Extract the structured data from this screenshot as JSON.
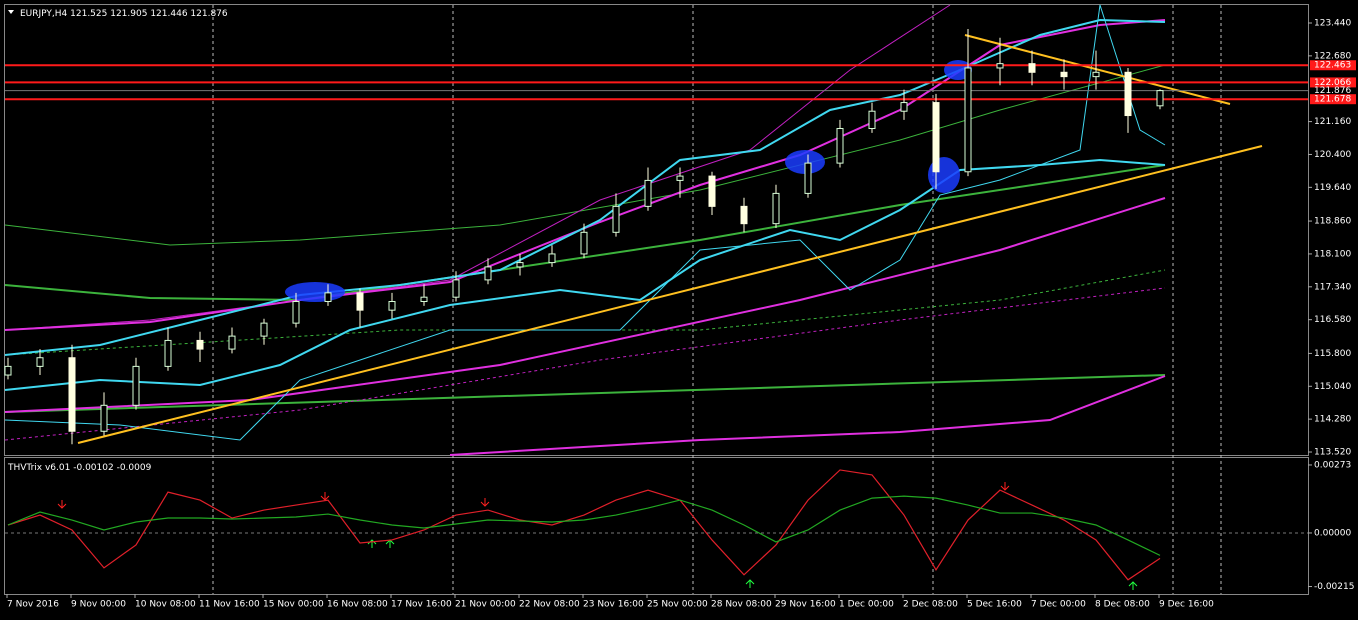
{
  "chart_data": {
    "type": "candlestick",
    "symbol": "EURJPY,H4",
    "open": [
      115.3,
      115.5,
      115.7,
      114.0,
      114.6,
      115.5,
      116.1,
      115.9,
      116.2,
      116.5,
      117.0,
      117.2,
      116.8,
      117.0,
      117.1,
      117.5,
      117.8,
      117.9,
      118.1,
      118.6,
      119.2,
      119.8,
      119.9,
      119.2,
      118.8,
      119.5,
      120.2,
      121.0,
      121.4,
      121.6,
      120.0,
      122.4,
      122.5,
      122.3,
      122.2,
      122.3,
      121.525
    ],
    "high": [
      115.7,
      115.9,
      116.0,
      114.9,
      115.7,
      116.4,
      116.3,
      116.4,
      116.6,
      117.2,
      117.4,
      117.3,
      117.2,
      117.4,
      117.7,
      118.0,
      118.1,
      118.3,
      118.8,
      119.5,
      120.1,
      120.1,
      120.0,
      119.4,
      119.7,
      120.4,
      121.2,
      121.6,
      121.9,
      121.8,
      123.3,
      123.1,
      122.8,
      122.6,
      122.8,
      122.4,
      121.905
    ],
    "low": [
      115.2,
      115.3,
      113.7,
      113.9,
      114.5,
      115.4,
      115.6,
      115.8,
      116.0,
      116.4,
      116.9,
      116.4,
      116.6,
      116.9,
      117.0,
      117.4,
      117.6,
      117.8,
      118.0,
      118.5,
      119.1,
      119.4,
      119.0,
      118.6,
      118.7,
      119.4,
      120.1,
      120.9,
      121.2,
      119.6,
      119.9,
      122.0,
      122.0,
      121.9,
      121.9,
      120.9,
      121.446
    ],
    "close": [
      115.5,
      115.7,
      114.0,
      114.6,
      115.5,
      116.1,
      115.9,
      116.2,
      116.5,
      117.0,
      117.2,
      116.8,
      117.0,
      117.1,
      117.5,
      117.8,
      117.9,
      118.1,
      118.6,
      119.2,
      119.8,
      119.9,
      119.2,
      118.8,
      119.5,
      120.2,
      121.0,
      121.4,
      121.6,
      120.0,
      122.4,
      122.5,
      122.3,
      122.2,
      122.3,
      121.3,
      121.876
    ],
    "ylim": [
      113.451,
      123.856
    ],
    "yticks": [
      {
        "value": 123.44,
        "label": "123.440"
      },
      {
        "value": 122.68,
        "label": "122.680"
      },
      {
        "value": 121.16,
        "label": "121.160"
      },
      {
        "value": 120.4,
        "label": "120.400"
      },
      {
        "value": 119.64,
        "label": "119.640"
      },
      {
        "value": 118.86,
        "label": "118.860"
      },
      {
        "value": 118.1,
        "label": "118.100"
      },
      {
        "value": 117.34,
        "label": "117.340"
      },
      {
        "value": 116.58,
        "label": "116.580"
      },
      {
        "value": 115.8,
        "label": "115.800"
      },
      {
        "value": 115.04,
        "label": "115.040"
      },
      {
        "value": 114.28,
        "label": "114.280"
      },
      {
        "value": 113.52,
        "label": "113.520"
      }
    ],
    "levels": [
      {
        "value": 122.463,
        "label": "122.463"
      },
      {
        "value": 122.066,
        "label": "122.066"
      },
      {
        "value": 121.678,
        "label": "121.678"
      }
    ],
    "level_color": "#ff1a1a",
    "time_labels": [
      "7 Nov 2016",
      "9 Nov 00:00",
      "10 Nov 08:00",
      "11 Nov 16:00",
      "15 Nov 00:00",
      "16 Nov 08:00",
      "17 Nov 16:00",
      "21 Nov 00:00",
      "22 Nov 08:00",
      "23 Nov 16:00",
      "25 Nov 00:00",
      "28 Nov 08:00",
      "29 Nov 16:00",
      "1 Dec 00:00",
      "2 Dec 08:00",
      "5 Dec 16:00",
      "7 Dec 00:00",
      "8 Dec 08:00",
      "9 Dec 16:00"
    ],
    "indicator": {
      "name": "THVTrix v6.01",
      "ylim": [
        -0.00245,
        0.00301
      ],
      "yticks": [
        {
          "value": 0.00273,
          "label": "0.00273"
        },
        {
          "value": 0,
          "label": "0.00000"
        },
        {
          "value": -0.00215,
          "label": "-0.00215"
        }
      ],
      "series": [
        {
          "color": "#e0202a",
          "values": [
            0.00032,
            0.00072,
            0.00012,
            -0.0014,
            -0.00048,
            0.00164,
            0.00132,
            0.0006,
            0.00092,
            0.00112,
            0.00132,
            -0.0004,
            -0.00028,
            0.00012,
            0.00072,
            0.00092,
            0.00052,
            0.00032,
            0.00072,
            0.00132,
            0.00172,
            0.00132,
            -0.00028,
            -0.00168,
            -0.00048,
            0.00132,
            0.00253,
            0.00233,
            0.00072,
            -0.00148,
            0.00052,
            0.00172,
            0.00112,
            0.00052,
            -0.00028,
            -0.00188,
            -0.00102
          ]
        },
        {
          "color": "#22a822",
          "values": [
            0.00032,
            0.00084,
            0.00052,
            0.00012,
            0.00044,
            0.0006,
            0.0006,
            0.00056,
            0.0006,
            0.00064,
            0.00076,
            0.00052,
            0.00032,
            0.0002,
            0.00036,
            0.00052,
            0.00048,
            0.00044,
            0.00052,
            0.00072,
            0.001,
            0.00132,
            0.00092,
            0.00032,
            -0.00036,
            0.00012,
            0.00092,
            0.0014,
            0.00148,
            0.0014,
            0.00112,
            0.0008,
            0.0008,
            0.0006,
            0.00032,
            -0.00028,
            -0.0009
          ]
        }
      ]
    }
  }
}
